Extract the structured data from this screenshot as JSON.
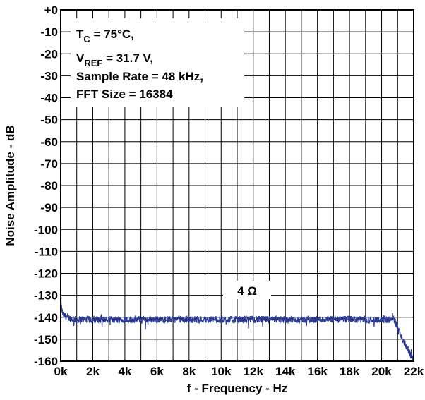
{
  "chart_data": {
    "type": "line",
    "xlabel": "f - Frequency - Hz",
    "ylabel": "Noise Amplitude - dB",
    "xlim": [
      0,
      22000
    ],
    "ylim": [
      -160,
      0
    ],
    "x_ticks": [
      "0k",
      "2k",
      "4k",
      "6k",
      "8k",
      "10k",
      "12k",
      "14k",
      "16k",
      "18k",
      "20k",
      "22k"
    ],
    "y_ticks": [
      "+0",
      "-10",
      "-20",
      "-30",
      "-40",
      "-50",
      "-60",
      "-70",
      "-80",
      "-90",
      "-100",
      "-110",
      "-120",
      "-130",
      "-140",
      "-150",
      "-160"
    ],
    "grid": true,
    "x_minor_per_major": 2,
    "series_color": "#2b3990",
    "series": [
      {
        "name": "4 Ω",
        "x": [
          0,
          50,
          150,
          400,
          800,
          1000,
          2000,
          4000,
          6000,
          8000,
          10000,
          12000,
          14000,
          16000,
          18000,
          20000,
          20800,
          21000,
          21300,
          21600,
          21800,
          22000
        ],
        "values": [
          -130,
          -136,
          -139,
          -140,
          -141,
          -141,
          -141,
          -141,
          -141,
          -141,
          -141,
          -141,
          -141,
          -141,
          -141,
          -141,
          -141,
          -145,
          -150,
          -154,
          -157,
          -160
        ]
      }
    ],
    "annotations": {
      "conditions": [
        "T",
        "C",
        " = 75°C,",
        "V",
        "REF",
        " = 31.7 V,",
        "Sample Rate = 48 kHz,",
        "FFT Size = 16384"
      ],
      "series_label": "4 Ω"
    }
  }
}
